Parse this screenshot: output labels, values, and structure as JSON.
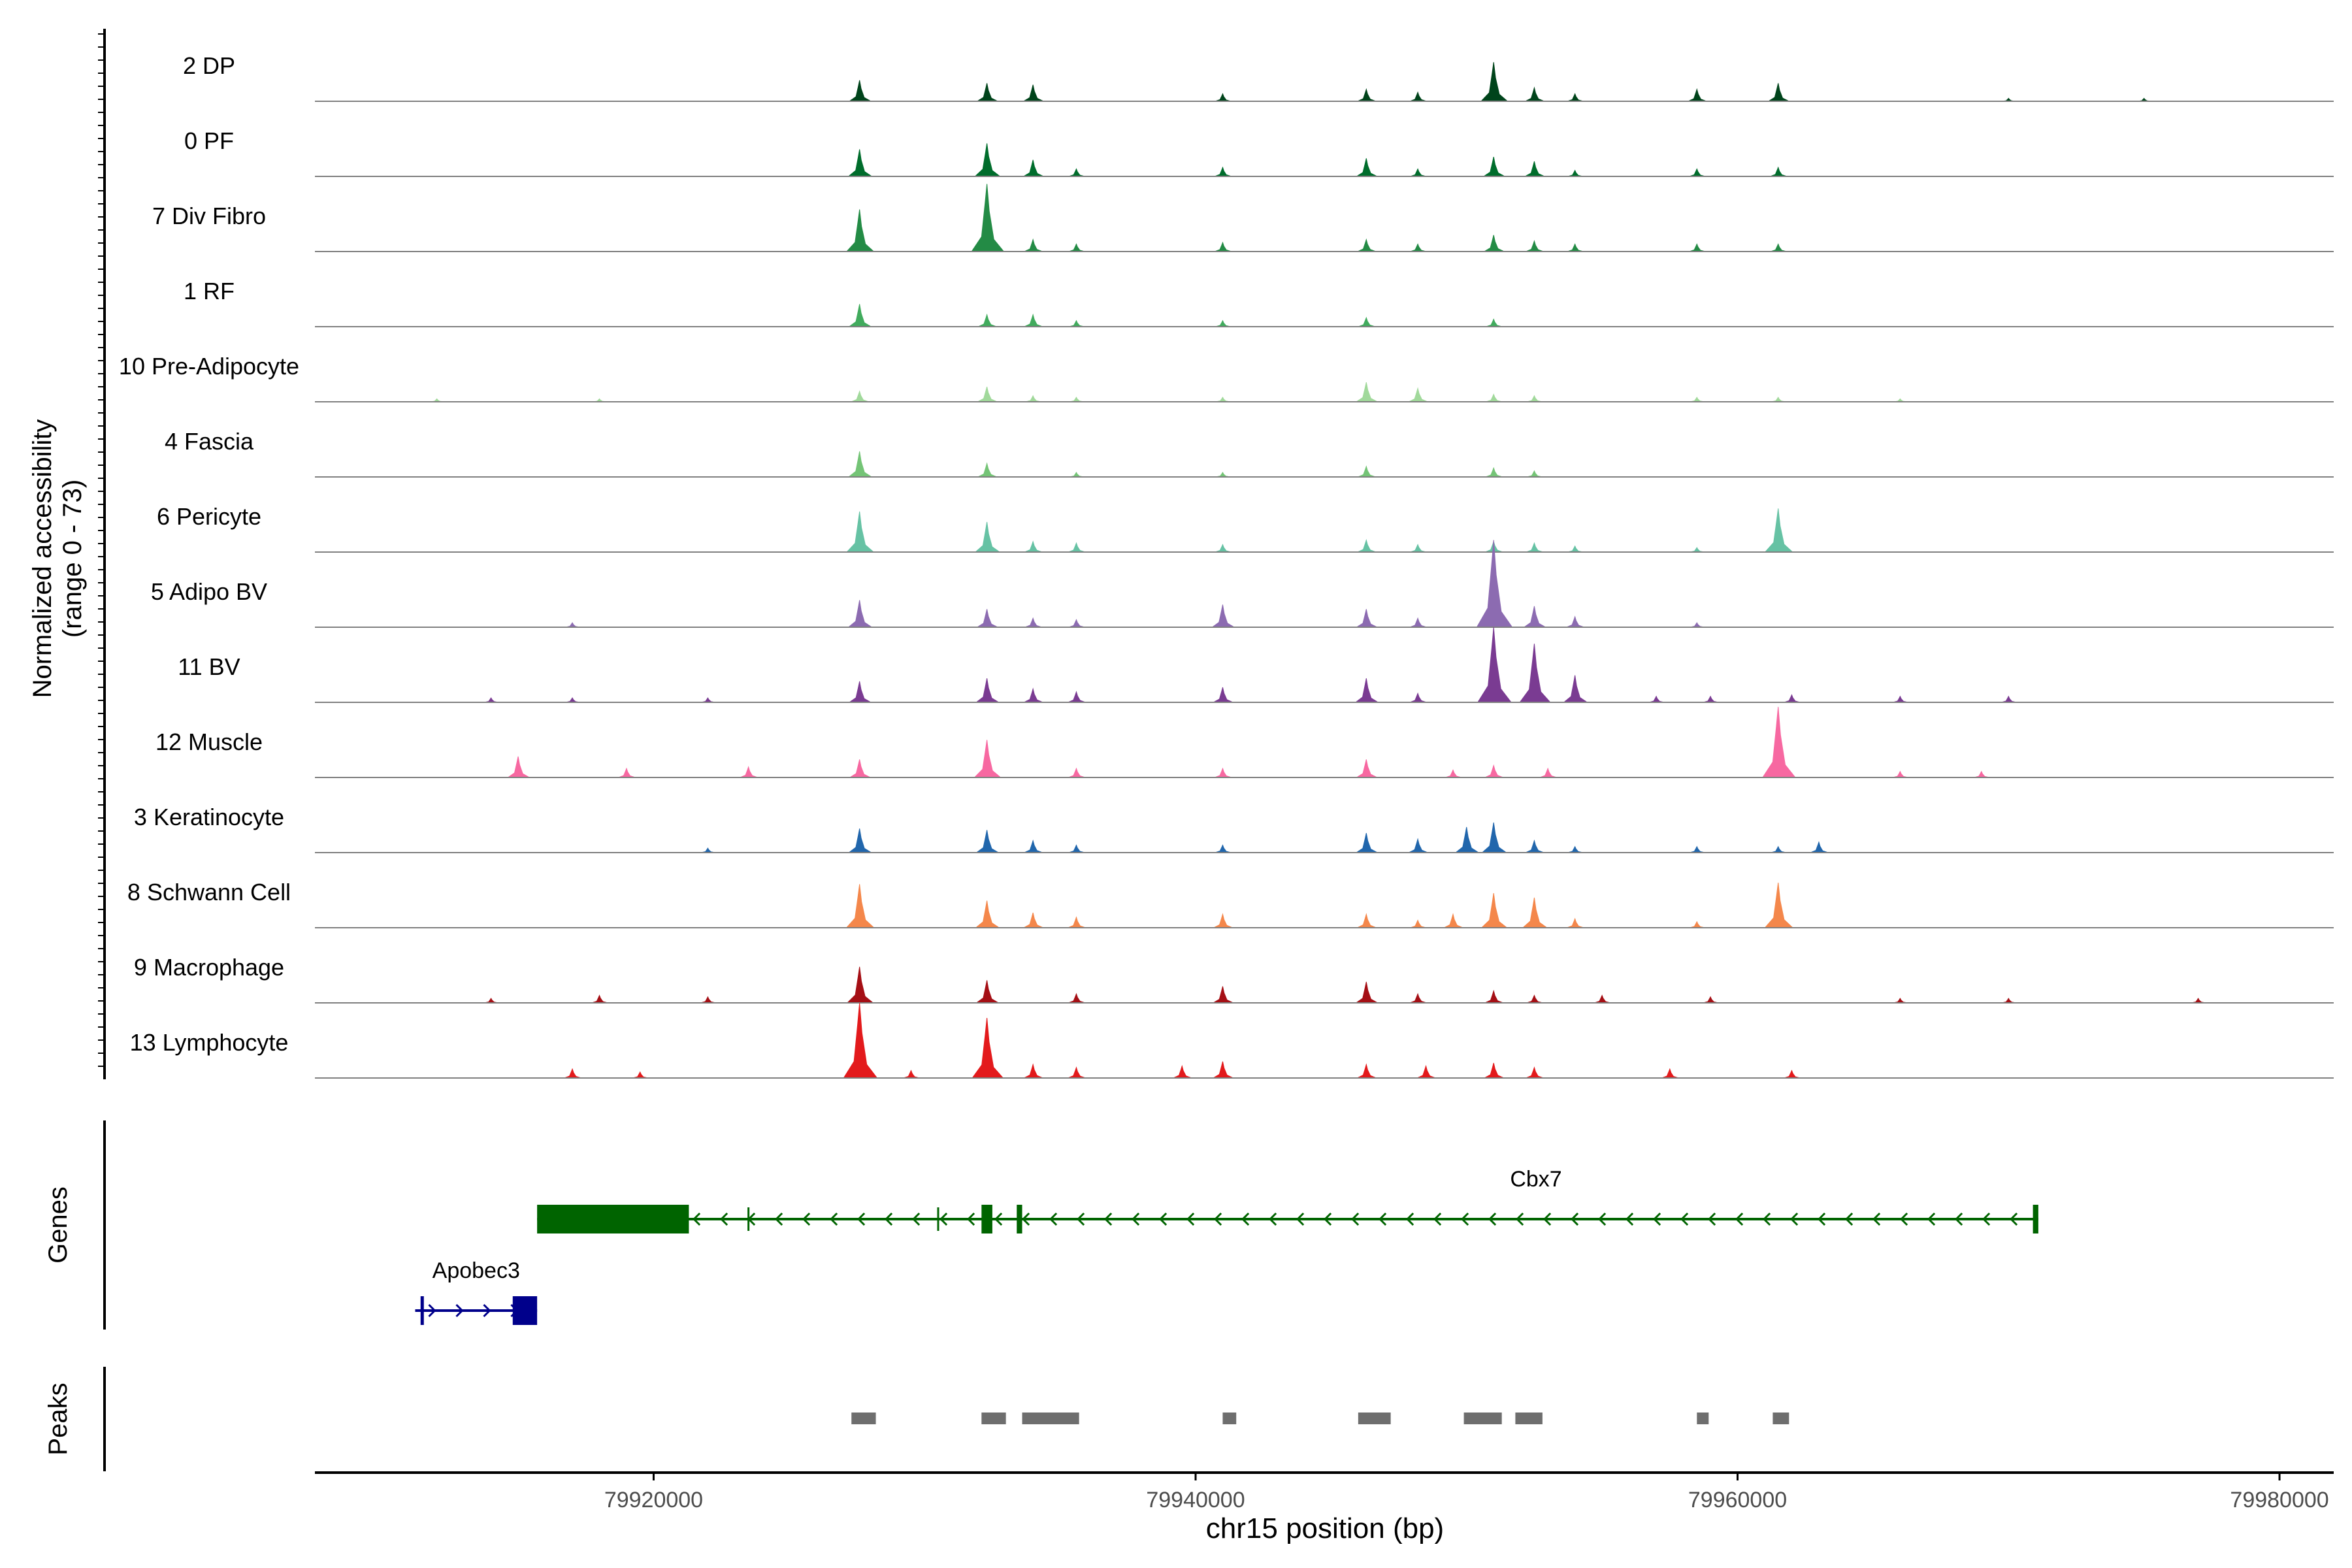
{
  "chart_data": {
    "type": "area",
    "y_axis_title_line1": "Normalized accessibility",
    "y_axis_title_line2": "(range 0 - 73)",
    "y_range": [
      0,
      73
    ],
    "x_axis_label": "chr15 position (bp)",
    "x_range": [
      79907500,
      79982000
    ],
    "x_ticks": [
      79920000,
      79940000,
      79960000,
      79980000
    ],
    "x_tick_labels": [
      "79920000",
      "79940000",
      "79960000",
      "79980000"
    ],
    "tracks": [
      {
        "name": "2 DP",
        "color": "#00441b",
        "peaks": [
          [
            79927600,
            14
          ],
          [
            79932300,
            12
          ],
          [
            79934000,
            11
          ],
          [
            79941000,
            5
          ],
          [
            79946300,
            8
          ],
          [
            79948200,
            6
          ],
          [
            79951000,
            26
          ],
          [
            79952500,
            9
          ],
          [
            79954000,
            5
          ],
          [
            79958500,
            8
          ],
          [
            79961500,
            12
          ],
          [
            79970000,
            2
          ],
          [
            79975000,
            2
          ]
        ]
      },
      {
        "name": "0 PF",
        "color": "#006d2c",
        "peaks": [
          [
            79927600,
            18
          ],
          [
            79932300,
            22
          ],
          [
            79934000,
            11
          ],
          [
            79935600,
            5
          ],
          [
            79941000,
            6
          ],
          [
            79946300,
            12
          ],
          [
            79948200,
            5
          ],
          [
            79951000,
            13
          ],
          [
            79952500,
            10
          ],
          [
            79954000,
            4
          ],
          [
            79958500,
            5
          ],
          [
            79961500,
            6
          ]
        ]
      },
      {
        "name": "7 Div Fibro",
        "color": "#238b45",
        "peaks": [
          [
            79927600,
            28
          ],
          [
            79932300,
            45
          ],
          [
            79934000,
            8
          ],
          [
            79935600,
            5
          ],
          [
            79941000,
            6
          ],
          [
            79946300,
            8
          ],
          [
            79948200,
            5
          ],
          [
            79951000,
            11
          ],
          [
            79952500,
            7
          ],
          [
            79954000,
            5
          ],
          [
            79958500,
            5
          ],
          [
            79961500,
            5
          ]
        ]
      },
      {
        "name": "1 RF",
        "color": "#41ab5d",
        "peaks": [
          [
            79927600,
            15
          ],
          [
            79932300,
            8
          ],
          [
            79934000,
            8
          ],
          [
            79935600,
            4
          ],
          [
            79941000,
            4
          ],
          [
            79946300,
            6
          ],
          [
            79951000,
            5
          ]
        ]
      },
      {
        "name": "10 Pre-Adipocyte",
        "color": "#a1d99b",
        "peaks": [
          [
            79912000,
            2
          ],
          [
            79918000,
            2
          ],
          [
            79927600,
            7
          ],
          [
            79932300,
            10
          ],
          [
            79934000,
            4
          ],
          [
            79935600,
            3
          ],
          [
            79941000,
            3
          ],
          [
            79946300,
            13
          ],
          [
            79948200,
            9
          ],
          [
            79951000,
            5
          ],
          [
            79952500,
            4
          ],
          [
            79958500,
            3
          ],
          [
            79961500,
            3
          ],
          [
            79966000,
            2
          ]
        ]
      },
      {
        "name": "4 Fascia",
        "color": "#74c476",
        "peaks": [
          [
            79927600,
            17
          ],
          [
            79932300,
            9
          ],
          [
            79935600,
            3
          ],
          [
            79941000,
            3
          ],
          [
            79946300,
            7
          ],
          [
            79951000,
            6
          ],
          [
            79952500,
            4
          ]
        ]
      },
      {
        "name": "6 Pericyte",
        "color": "#66c2a4",
        "peaks": [
          [
            79927600,
            27
          ],
          [
            79932300,
            20
          ],
          [
            79934000,
            7
          ],
          [
            79935600,
            6
          ],
          [
            79941000,
            5
          ],
          [
            79946300,
            8
          ],
          [
            79948200,
            5
          ],
          [
            79951000,
            7
          ],
          [
            79952500,
            6
          ],
          [
            79954000,
            4
          ],
          [
            79958500,
            3
          ],
          [
            79961500,
            29
          ]
        ]
      },
      {
        "name": "5 Adipo BV",
        "color": "#8c6bb1",
        "peaks": [
          [
            79917000,
            3
          ],
          [
            79927600,
            18
          ],
          [
            79932300,
            12
          ],
          [
            79934000,
            6
          ],
          [
            79935600,
            5
          ],
          [
            79941000,
            15
          ],
          [
            79946300,
            12
          ],
          [
            79948200,
            6
          ],
          [
            79951000,
            58
          ],
          [
            79952500,
            14
          ],
          [
            79954000,
            7
          ],
          [
            79958500,
            3
          ]
        ]
      },
      {
        "name": "11 BV",
        "color": "#7a3b92",
        "peaks": [
          [
            79914000,
            3
          ],
          [
            79917000,
            3
          ],
          [
            79922000,
            3
          ],
          [
            79927600,
            14
          ],
          [
            79932300,
            16
          ],
          [
            79934000,
            9
          ],
          [
            79935600,
            7
          ],
          [
            79941000,
            10
          ],
          [
            79946300,
            16
          ],
          [
            79948200,
            6
          ],
          [
            79951000,
            50
          ],
          [
            79952500,
            39
          ],
          [
            79954000,
            18
          ],
          [
            79957000,
            4
          ],
          [
            79959000,
            4
          ],
          [
            79962000,
            5
          ],
          [
            79966000,
            4
          ],
          [
            79970000,
            4
          ]
        ]
      },
      {
        "name": "12 Muscle",
        "color": "#f768a1",
        "peaks": [
          [
            79915000,
            14
          ],
          [
            79919000,
            6
          ],
          [
            79923500,
            7
          ],
          [
            79927600,
            12
          ],
          [
            79932300,
            25
          ],
          [
            79935600,
            6
          ],
          [
            79941000,
            6
          ],
          [
            79946300,
            12
          ],
          [
            79949500,
            5
          ],
          [
            79951000,
            8
          ],
          [
            79953000,
            6
          ],
          [
            79961500,
            47
          ],
          [
            79966000,
            4
          ],
          [
            79969000,
            4
          ]
        ]
      },
      {
        "name": "3 Keratinocyte",
        "color": "#2166ac",
        "peaks": [
          [
            79922000,
            3
          ],
          [
            79927600,
            16
          ],
          [
            79932300,
            15
          ],
          [
            79934000,
            8
          ],
          [
            79935600,
            5
          ],
          [
            79941000,
            5
          ],
          [
            79946300,
            13
          ],
          [
            79948200,
            9
          ],
          [
            79950000,
            17
          ],
          [
            79951000,
            20
          ],
          [
            79952500,
            8
          ],
          [
            79954000,
            4
          ],
          [
            79958500,
            4
          ],
          [
            79961500,
            4
          ],
          [
            79963000,
            7
          ]
        ]
      },
      {
        "name": "8 Schwann Cell",
        "color": "#f4874b",
        "peaks": [
          [
            79927600,
            29
          ],
          [
            79932300,
            18
          ],
          [
            79934000,
            10
          ],
          [
            79935600,
            7
          ],
          [
            79941000,
            9
          ],
          [
            79946300,
            9
          ],
          [
            79948200,
            5
          ],
          [
            79949500,
            9
          ],
          [
            79951000,
            23
          ],
          [
            79952500,
            20
          ],
          [
            79954000,
            6
          ],
          [
            79958500,
            4
          ],
          [
            79961500,
            30
          ]
        ]
      },
      {
        "name": "9 Macrophage",
        "color": "#a50f15",
        "peaks": [
          [
            79914000,
            3
          ],
          [
            79918000,
            5
          ],
          [
            79922000,
            4
          ],
          [
            79927600,
            24
          ],
          [
            79932300,
            15
          ],
          [
            79935600,
            6
          ],
          [
            79941000,
            11
          ],
          [
            79946300,
            14
          ],
          [
            79948200,
            6
          ],
          [
            79951000,
            8
          ],
          [
            79952500,
            5
          ],
          [
            79955000,
            5
          ],
          [
            79959000,
            4
          ],
          [
            79966000,
            3
          ],
          [
            79970000,
            3
          ],
          [
            79977000,
            3
          ]
        ]
      },
      {
        "name": "13 Lymphocyte",
        "color": "#e31a1c",
        "peaks": [
          [
            79917000,
            6
          ],
          [
            79919500,
            4
          ],
          [
            79927600,
            50
          ],
          [
            79929500,
            5
          ],
          [
            79932300,
            40
          ],
          [
            79934000,
            9
          ],
          [
            79935600,
            7
          ],
          [
            79939500,
            8
          ],
          [
            79941000,
            11
          ],
          [
            79946300,
            9
          ],
          [
            79948500,
            8
          ],
          [
            79951000,
            10
          ],
          [
            79952500,
            7
          ],
          [
            79957500,
            6
          ],
          [
            79962000,
            5
          ]
        ]
      }
    ],
    "genes": [
      {
        "name": "Cbx7",
        "color": "#006400",
        "strand": "-",
        "start": 79915700,
        "end": 79971100,
        "exons": [
          [
            79915700,
            79921300
          ],
          [
            79932100,
            79932500
          ],
          [
            79933400,
            79933600
          ],
          [
            79970900,
            79971100
          ]
        ]
      },
      {
        "name": "Apobec3",
        "color": "#00008b",
        "strand": "+",
        "start": 79911200,
        "end": 79915700,
        "exons": [
          [
            79911400,
            79911500
          ],
          [
            79914800,
            79915700
          ]
        ]
      }
    ],
    "peaks_track": [
      [
        79927300,
        79928200
      ],
      [
        79932100,
        79933000
      ],
      [
        79933600,
        79935700
      ],
      [
        79941000,
        79941500
      ],
      [
        79946000,
        79947200
      ],
      [
        79949900,
        79951300
      ],
      [
        79951800,
        79952800
      ],
      [
        79958500,
        79958900
      ],
      [
        79961300,
        79961900
      ]
    ],
    "track_titles": {
      "genes": "Genes",
      "peaks": "Peaks"
    }
  }
}
